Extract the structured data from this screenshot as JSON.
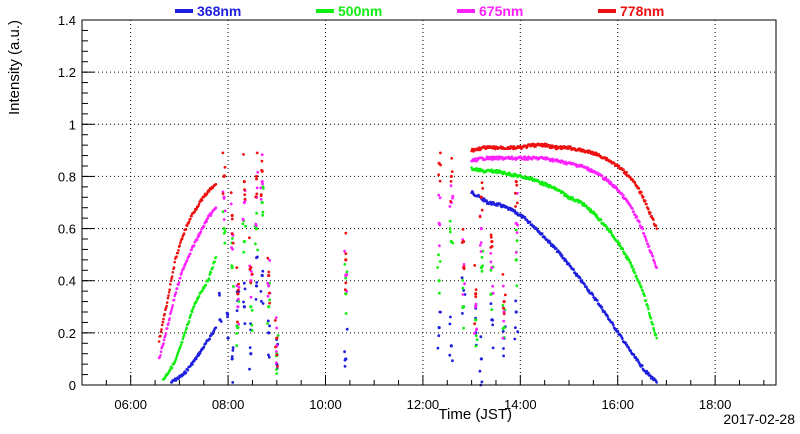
{
  "chart_data": {
    "type": "scatter",
    "title": "",
    "xlabel": "Time (JST)",
    "ylabel": "Intensity (a.u.)",
    "date": "2017-02-28",
    "xlim": [
      "05:00",
      "19:15"
    ],
    "ylim": [
      0,
      1.4
    ],
    "x_ticks": [
      "06:00",
      "08:00",
      "10:00",
      "12:00",
      "14:00",
      "16:00",
      "18:00"
    ],
    "y_ticks": [
      "0",
      "0.2",
      "0.4",
      "0.6",
      "0.8",
      "1",
      "1.2",
      "1.4"
    ],
    "grid": true,
    "legend_position": "top",
    "series": [
      {
        "name": "368nm",
        "color": "#1f1fdd",
        "segments": [
          {
            "x": [
              "06:50",
              "07:05",
              "07:20",
              "07:35",
              "07:45"
            ],
            "y": [
              0.01,
              0.04,
              0.1,
              0.17,
              0.22
            ]
          },
          {
            "x": [
              "13:00",
              "13:10",
              "13:20",
              "13:35",
              "13:50",
              "14:05",
              "14:20",
              "14:35",
              "14:50",
              "15:05",
              "15:20",
              "15:35",
              "15:50",
              "16:05",
              "16:20",
              "16:35",
              "16:48"
            ],
            "y": [
              0.74,
              0.72,
              0.7,
              0.69,
              0.67,
              0.64,
              0.6,
              0.55,
              0.5,
              0.44,
              0.38,
              0.32,
              0.25,
              0.18,
              0.11,
              0.05,
              0.01
            ]
          }
        ],
        "scatter": [
          [
            "07:50",
            0.25
          ],
          [
            "08:00",
            0.18
          ],
          [
            "08:05",
            0.1
          ],
          [
            "08:12",
            0.35
          ],
          [
            "08:20",
            0.3
          ],
          [
            "08:28",
            0.12
          ],
          [
            "08:35",
            0.38
          ],
          [
            "08:42",
            0.42
          ],
          [
            "08:50",
            0.2
          ],
          [
            "09:00",
            0.08
          ],
          [
            "10:25",
            0.1
          ],
          [
            "12:20",
            0.22
          ],
          [
            "12:35",
            0.15
          ],
          [
            "12:50",
            0.3
          ],
          [
            "13:05",
            0.2
          ],
          [
            "13:12",
            0.1
          ],
          [
            "13:25",
            0.25
          ],
          [
            "13:40",
            0.18
          ],
          [
            "13:55",
            0.28
          ]
        ]
      },
      {
        "name": "500nm",
        "color": "#11ee11",
        "segments": [
          {
            "x": [
              "06:40",
              "06:55",
              "07:05",
              "07:15",
              "07:25",
              "07:35",
              "07:45"
            ],
            "y": [
              0.02,
              0.09,
              0.18,
              0.28,
              0.35,
              0.4,
              0.49
            ]
          },
          {
            "x": [
              "13:00",
              "13:15",
              "13:30",
              "13:45",
              "14:00",
              "14:15",
              "14:30",
              "14:45",
              "15:00",
              "15:15",
              "15:30",
              "15:45",
              "16:00",
              "16:15",
              "16:30",
              "16:48"
            ],
            "y": [
              0.83,
              0.82,
              0.82,
              0.81,
              0.8,
              0.79,
              0.77,
              0.75,
              0.72,
              0.7,
              0.66,
              0.61,
              0.55,
              0.47,
              0.37,
              0.18
            ]
          }
        ],
        "scatter": [
          [
            "07:55",
            0.6
          ],
          [
            "08:05",
            0.45
          ],
          [
            "08:12",
            0.22
          ],
          [
            "08:20",
            0.55
          ],
          [
            "08:28",
            0.3
          ],
          [
            "08:35",
            0.6
          ],
          [
            "08:42",
            0.7
          ],
          [
            "08:50",
            0.3
          ],
          [
            "09:00",
            0.12
          ],
          [
            "10:25",
            0.35
          ],
          [
            "12:20",
            0.4
          ],
          [
            "12:35",
            0.55
          ],
          [
            "12:50",
            0.3
          ],
          [
            "13:05",
            0.25
          ],
          [
            "13:12",
            0.45
          ],
          [
            "13:25",
            0.35
          ],
          [
            "13:40",
            0.22
          ],
          [
            "13:55",
            0.48
          ]
        ]
      },
      {
        "name": "675nm",
        "color": "#ff22ff",
        "segments": [
          {
            "x": [
              "06:35",
              "06:45",
              "06:55",
              "07:05",
              "07:15",
              "07:25",
              "07:35",
              "07:45"
            ],
            "y": [
              0.1,
              0.22,
              0.35,
              0.45,
              0.52,
              0.58,
              0.64,
              0.68
            ]
          },
          {
            "x": [
              "13:00",
              "13:15",
              "13:30",
              "13:45",
              "14:00",
              "14:15",
              "14:30",
              "14:45",
              "15:00",
              "15:15",
              "15:30",
              "15:45",
              "16:00",
              "16:15",
              "16:30",
              "16:48"
            ],
            "y": [
              0.86,
              0.87,
              0.87,
              0.87,
              0.87,
              0.87,
              0.87,
              0.86,
              0.85,
              0.84,
              0.82,
              0.79,
              0.75,
              0.69,
              0.6,
              0.45
            ]
          }
        ],
        "scatter": [
          [
            "07:55",
            0.72
          ],
          [
            "08:05",
            0.58
          ],
          [
            "08:12",
            0.3
          ],
          [
            "08:20",
            0.7
          ],
          [
            "08:28",
            0.4
          ],
          [
            "08:35",
            0.72
          ],
          [
            "08:42",
            0.78
          ],
          [
            "08:50",
            0.38
          ],
          [
            "09:00",
            0.15
          ],
          [
            "10:25",
            0.42
          ],
          [
            "12:20",
            0.62
          ],
          [
            "12:35",
            0.7
          ],
          [
            "12:50",
            0.45
          ],
          [
            "13:05",
            0.3
          ],
          [
            "13:12",
            0.6
          ],
          [
            "13:25",
            0.45
          ],
          [
            "13:40",
            0.28
          ],
          [
            "13:55",
            0.62
          ]
        ]
      },
      {
        "name": "778nm",
        "color": "#ee1111",
        "segments": [
          {
            "x": [
              "06:35",
              "06:45",
              "06:55",
              "07:05",
              "07:15",
              "07:25",
              "07:35",
              "07:45"
            ],
            "y": [
              0.17,
              0.32,
              0.48,
              0.58,
              0.65,
              0.7,
              0.74,
              0.77
            ]
          },
          {
            "x": [
              "13:00",
              "13:15",
              "13:30",
              "13:45",
              "14:00",
              "14:15",
              "14:30",
              "14:45",
              "15:00",
              "15:15",
              "15:30",
              "15:45",
              "16:00",
              "16:15",
              "16:30",
              "16:48"
            ],
            "y": [
              0.9,
              0.91,
              0.91,
              0.91,
              0.91,
              0.92,
              0.92,
              0.91,
              0.91,
              0.9,
              0.89,
              0.87,
              0.84,
              0.8,
              0.73,
              0.6
            ]
          }
        ],
        "scatter": [
          [
            "07:55",
            0.8
          ],
          [
            "08:05",
            0.65
          ],
          [
            "08:12",
            0.35
          ],
          [
            "08:20",
            0.78
          ],
          [
            "08:28",
            0.45
          ],
          [
            "08:35",
            0.8
          ],
          [
            "08:42",
            0.82
          ],
          [
            "08:50",
            0.42
          ],
          [
            "09:00",
            0.18
          ],
          [
            "10:25",
            0.48
          ],
          [
            "12:20",
            0.85
          ],
          [
            "12:35",
            0.8
          ],
          [
            "12:50",
            0.55
          ],
          [
            "13:05",
            0.35
          ],
          [
            "13:12",
            0.72
          ],
          [
            "13:25",
            0.55
          ],
          [
            "13:40",
            0.32
          ],
          [
            "13:55",
            0.78
          ]
        ]
      }
    ]
  }
}
